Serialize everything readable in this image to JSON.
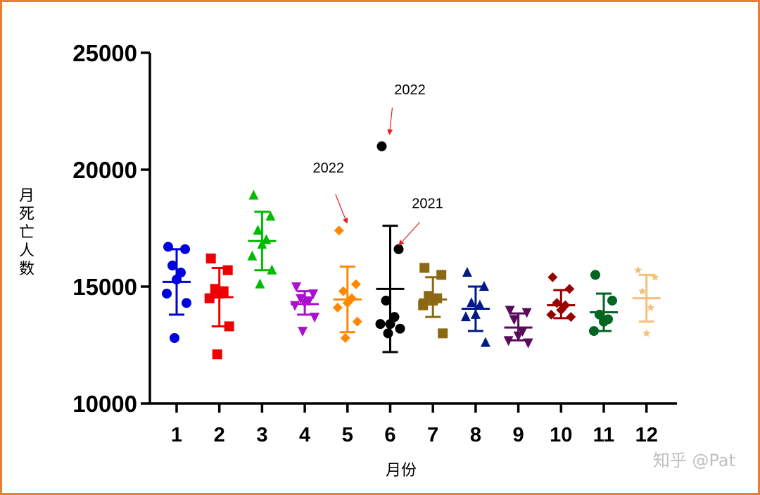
{
  "chart_data": {
    "type": "scatter",
    "xlabel": "月份",
    "ylabel": "月死亡人数",
    "ylim": [
      10000,
      25000
    ],
    "yticks": [
      "10000",
      "15000",
      "20000",
      "25000"
    ],
    "categories": [
      "1",
      "2",
      "3",
      "4",
      "5",
      "6",
      "7",
      "8",
      "9",
      "10",
      "11",
      "12"
    ],
    "grid": false,
    "series": [
      {
        "category": "1",
        "color": "#0000DD",
        "marker": "circle",
        "points": [
          16700,
          16600,
          15900,
          15600,
          15300,
          14700,
          14300,
          12800
        ],
        "mean": 15200,
        "sd_low": 13800,
        "sd_high": 16600
      },
      {
        "category": "2",
        "color": "#EE0000",
        "marker": "square",
        "points": [
          16200,
          15700,
          14900,
          14800,
          14700,
          14500,
          13300,
          12100
        ],
        "mean": 14550,
        "sd_low": 13300,
        "sd_high": 15800
      },
      {
        "category": "3",
        "color": "#00BB00",
        "marker": "triangle-up",
        "points": [
          18900,
          18000,
          17400,
          17000,
          16800,
          16300,
          15700,
          15100
        ],
        "mean": 16950,
        "sd_low": 15700,
        "sd_high": 18200
      },
      {
        "category": "4",
        "color": "#AA11CC",
        "marker": "triangle-down",
        "points": [
          15000,
          14700,
          14500,
          14400,
          14300,
          14200,
          13700,
          13100
        ],
        "mean": 14250,
        "sd_low": 13800,
        "sd_high": 14800
      },
      {
        "category": "5",
        "color": "#FF8800",
        "marker": "diamond",
        "points": [
          17400,
          15100,
          14800,
          14500,
          14300,
          14100,
          13500,
          12800
        ],
        "mean": 14450,
        "sd_low": 13050,
        "sd_high": 15850
      },
      {
        "category": "6",
        "color": "#000000",
        "marker": "circle",
        "points": [
          21000,
          16600,
          14400,
          13700,
          13400,
          13400,
          13200,
          13000
        ],
        "mean": 14900,
        "sd_low": 12200,
        "sd_high": 17600
      },
      {
        "category": "7",
        "color": "#8B6914",
        "marker": "square",
        "points": [
          15800,
          15500,
          14600,
          14500,
          14400,
          14200,
          13000
        ],
        "mean": 14450,
        "sd_low": 13700,
        "sd_high": 15400
      },
      {
        "category": "8",
        "color": "#001A88",
        "marker": "triangle-up",
        "points": [
          15600,
          15000,
          14300,
          14200,
          13800,
          13700,
          12600
        ],
        "mean": 14050,
        "sd_low": 13100,
        "sd_high": 15000
      },
      {
        "category": "9",
        "color": "#5A0A5A",
        "marker": "triangle-down",
        "points": [
          14000,
          13900,
          13600,
          13100,
          12900,
          12700,
          12600
        ],
        "mean": 13250,
        "sd_low": 12700,
        "sd_high": 13850
      },
      {
        "category": "10",
        "color": "#990000",
        "marker": "diamond",
        "points": [
          15400,
          14900,
          14300,
          14200,
          14000,
          13800,
          13700
        ],
        "mean": 14200,
        "sd_low": 13650,
        "sd_high": 14850
      },
      {
        "category": "11",
        "color": "#006622",
        "marker": "circle",
        "points": [
          15500,
          14400,
          13800,
          13600,
          13500,
          13100
        ],
        "mean": 13900,
        "sd_low": 13100,
        "sd_high": 14700
      },
      {
        "category": "12",
        "color": "#F5C07A",
        "marker": "star",
        "points": [
          15700,
          15400,
          14800,
          14100,
          13000
        ],
        "mean": 14500,
        "sd_low": 13500,
        "sd_high": 15500
      }
    ],
    "annotations": [
      {
        "text": "2022",
        "category": "5",
        "y": 17500
      },
      {
        "text": "2022",
        "category": "6",
        "y": 21300
      },
      {
        "text": "2021",
        "category": "6",
        "y": 17000
      }
    ]
  },
  "watermark": "知乎 @Pat"
}
